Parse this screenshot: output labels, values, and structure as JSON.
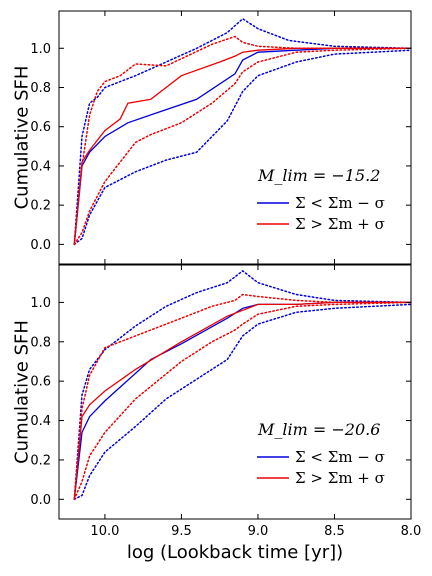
{
  "chart_data": [
    {
      "type": "line",
      "ylabel": "Cumulative SFH",
      "xlabel": "",
      "xlim": [
        10.3,
        8.0
      ],
      "ylim": [
        -0.1,
        1.19
      ],
      "x_ticks": [
        "10.0",
        "9.5",
        "9.0",
        "8.5",
        "8.0"
      ],
      "y_ticks": [
        "0.0",
        "0.2",
        "0.4",
        "0.6",
        "0.8",
        "1.0"
      ],
      "legend_title": "M_lim = −15.2",
      "legend_position": "lower-right",
      "series": [
        {
          "name": "Σ < Σm − σ",
          "color": "#0000dd",
          "style": "solid",
          "x": [
            10.2,
            10.15,
            10.1,
            10.0,
            9.85,
            9.7,
            9.4,
            9.15,
            9.1,
            9.0,
            8.75,
            8.5,
            8.25,
            8.0
          ],
          "y": [
            0.0,
            0.4,
            0.47,
            0.55,
            0.62,
            0.66,
            0.74,
            0.87,
            0.94,
            0.98,
            0.99,
            1.0,
            1.0,
            1.0
          ]
        },
        {
          "name": "Σ < Σm − σ (upper)",
          "color": "#0000dd",
          "style": "dotted",
          "x": [
            10.2,
            10.15,
            10.1,
            10.05,
            10.0,
            9.8,
            9.6,
            9.4,
            9.2,
            9.1,
            9.0,
            8.8,
            8.5,
            8.0
          ],
          "y": [
            0.0,
            0.55,
            0.72,
            0.75,
            0.8,
            0.86,
            0.93,
            1.0,
            1.08,
            1.15,
            1.1,
            1.04,
            1.01,
            1.0
          ]
        },
        {
          "name": "Σ < Σm − σ (lower)",
          "color": "#0000dd",
          "style": "dotted",
          "x": [
            10.2,
            10.15,
            10.1,
            10.0,
            9.8,
            9.6,
            9.4,
            9.2,
            9.1,
            9.0,
            8.75,
            8.5,
            8.25,
            8.0
          ],
          "y": [
            0.0,
            0.03,
            0.15,
            0.29,
            0.37,
            0.43,
            0.47,
            0.63,
            0.78,
            0.86,
            0.93,
            0.97,
            0.98,
            0.99
          ]
        },
        {
          "name": "Σ > Σm + σ",
          "color": "#ee0000",
          "style": "solid",
          "x": [
            10.2,
            10.15,
            10.1,
            10.0,
            9.9,
            9.85,
            9.7,
            9.5,
            9.25,
            9.15,
            9.1,
            9.0,
            8.75,
            8.5,
            8.0
          ],
          "y": [
            0.0,
            0.42,
            0.48,
            0.58,
            0.64,
            0.72,
            0.74,
            0.86,
            0.93,
            0.96,
            0.98,
            0.99,
            1.0,
            1.0,
            1.0
          ]
        },
        {
          "name": "Σ > Σm + σ (upper)",
          "color": "#ee0000",
          "style": "dotted",
          "x": [
            10.2,
            10.15,
            10.1,
            10.05,
            10.0,
            9.9,
            9.8,
            9.6,
            9.3,
            9.15,
            9.1,
            9.0,
            8.75,
            8.5,
            8.0
          ],
          "y": [
            0.0,
            0.4,
            0.66,
            0.78,
            0.83,
            0.86,
            0.92,
            0.91,
            1.02,
            1.06,
            1.03,
            1.01,
            1.0,
            1.0,
            1.0
          ]
        },
        {
          "name": "Σ > Σm + σ (lower)",
          "color": "#ee0000",
          "style": "dotted",
          "x": [
            10.2,
            10.15,
            10.1,
            10.0,
            9.9,
            9.8,
            9.7,
            9.5,
            9.3,
            9.15,
            9.1,
            9.0,
            8.75,
            8.5,
            8.0
          ],
          "y": [
            0.0,
            0.06,
            0.17,
            0.32,
            0.42,
            0.52,
            0.56,
            0.62,
            0.72,
            0.82,
            0.88,
            0.93,
            0.98,
            0.99,
            1.0
          ]
        }
      ]
    },
    {
      "type": "line",
      "ylabel": "Cumulative SFH",
      "xlabel": "log (Lookback time [yr])",
      "xlim": [
        10.3,
        8.0
      ],
      "ylim": [
        -0.1,
        1.19
      ],
      "x_ticks": [
        "10.0",
        "9.5",
        "9.0",
        "8.5",
        "8.0"
      ],
      "y_ticks": [
        "0.0",
        "0.2",
        "0.4",
        "0.6",
        "0.8",
        "1.0"
      ],
      "legend_title": "M_lim = −20.6",
      "legend_position": "lower-right",
      "series": [
        {
          "name": "Σ < Σm − σ",
          "color": "#0000dd",
          "style": "solid",
          "x": [
            10.2,
            10.15,
            10.1,
            10.0,
            9.9,
            9.7,
            9.5,
            9.2,
            9.1,
            9.0,
            8.75,
            8.5,
            8.0
          ],
          "y": [
            0.0,
            0.34,
            0.42,
            0.5,
            0.57,
            0.71,
            0.79,
            0.92,
            0.97,
            0.99,
            0.99,
            1.0,
            1.0
          ]
        },
        {
          "name": "Σ < Σm − σ (upper)",
          "color": "#0000dd",
          "style": "dotted",
          "x": [
            10.2,
            10.15,
            10.1,
            10.0,
            9.8,
            9.6,
            9.4,
            9.2,
            9.1,
            9.0,
            8.75,
            8.5,
            8.0
          ],
          "y": [
            0.0,
            0.53,
            0.66,
            0.76,
            0.88,
            0.98,
            1.05,
            1.1,
            1.16,
            1.1,
            1.04,
            1.01,
            1.0
          ]
        },
        {
          "name": "Σ < Σm − σ (lower)",
          "color": "#0000dd",
          "style": "dotted",
          "x": [
            10.2,
            10.15,
            10.1,
            10.0,
            9.8,
            9.6,
            9.4,
            9.2,
            9.1,
            9.0,
            8.75,
            8.5,
            8.0
          ],
          "y": [
            0.0,
            0.02,
            0.12,
            0.24,
            0.37,
            0.51,
            0.61,
            0.71,
            0.83,
            0.89,
            0.95,
            0.97,
            0.99
          ]
        },
        {
          "name": "Σ > Σm + σ",
          "color": "#ee0000",
          "style": "solid",
          "x": [
            10.2,
            10.15,
            10.1,
            10.0,
            9.8,
            9.5,
            9.2,
            9.1,
            9.0,
            8.75,
            8.5,
            8.0
          ],
          "y": [
            0.0,
            0.42,
            0.48,
            0.55,
            0.66,
            0.8,
            0.93,
            0.96,
            0.99,
            0.99,
            1.0,
            1.0
          ]
        },
        {
          "name": "Σ > Σm + σ (upper)",
          "color": "#ee0000",
          "style": "dotted",
          "x": [
            10.2,
            10.15,
            10.1,
            10.0,
            9.8,
            9.5,
            9.3,
            9.15,
            9.1,
            9.0,
            8.75,
            8.5,
            8.0
          ],
          "y": [
            0.0,
            0.46,
            0.63,
            0.77,
            0.83,
            0.92,
            0.98,
            1.01,
            1.04,
            1.03,
            1.01,
            1.0,
            1.0
          ]
        },
        {
          "name": "Σ > Σm + σ (lower)",
          "color": "#ee0000",
          "style": "dotted",
          "x": [
            10.2,
            10.15,
            10.1,
            10.0,
            9.8,
            9.5,
            9.3,
            9.15,
            9.1,
            9.0,
            8.75,
            8.5,
            8.0
          ],
          "y": [
            0.0,
            0.09,
            0.22,
            0.34,
            0.51,
            0.7,
            0.8,
            0.86,
            0.89,
            0.94,
            0.98,
            0.99,
            1.0
          ]
        }
      ]
    }
  ]
}
